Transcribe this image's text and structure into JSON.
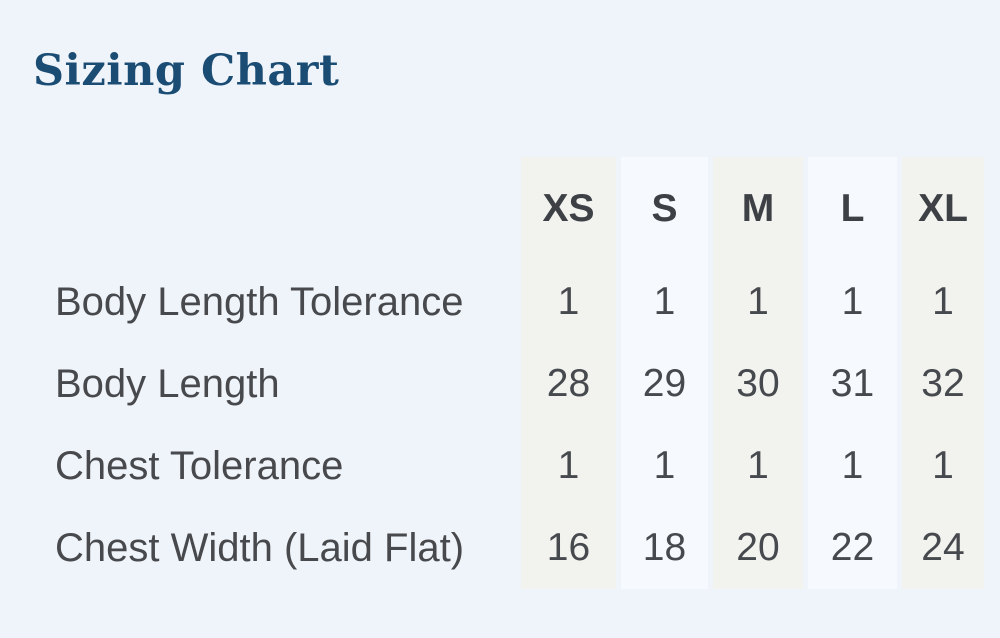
{
  "page": {
    "background": "#eff4fb"
  },
  "title": {
    "text": "Sizing Chart",
    "color": "#1b4c73"
  },
  "table": {
    "columns": [
      "XS",
      "S",
      "M",
      "L",
      "XL"
    ],
    "rows": [
      {
        "label": "Body Length Tolerance",
        "values": [
          "1",
          "1",
          "1",
          "1",
          "1"
        ]
      },
      {
        "label": "Body Length",
        "values": [
          "28",
          "29",
          "30",
          "31",
          "32"
        ]
      },
      {
        "label": "Chest Tolerance",
        "values": [
          "1",
          "1",
          "1",
          "1",
          "1"
        ]
      },
      {
        "label": "Chest Width (Laid Flat)",
        "values": [
          "16",
          "18",
          "20",
          "22",
          "24"
        ]
      }
    ],
    "band_colors": {
      "odd_columns": "#f2f2ef",
      "even_columns": "#f6f9fd"
    },
    "text_colors": {
      "header": "#3d4045",
      "body": "#47494c"
    }
  },
  "chart_data": {
    "type": "table",
    "title": "Sizing Chart",
    "columns": [
      "XS",
      "S",
      "M",
      "L",
      "XL"
    ],
    "row_labels": [
      "Body Length Tolerance",
      "Body Length",
      "Chest Tolerance",
      "Chest Width (Laid Flat)"
    ],
    "rows": [
      [
        1,
        1,
        1,
        1,
        1
      ],
      [
        28,
        29,
        30,
        31,
        32
      ],
      [
        1,
        1,
        1,
        1,
        1
      ],
      [
        16,
        18,
        20,
        22,
        24
      ]
    ]
  }
}
